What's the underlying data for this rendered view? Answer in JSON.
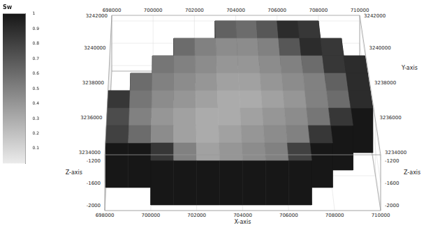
{
  "chart_data": {
    "type": "3d_block",
    "x_label": "X-axis",
    "y_label": "Y-axis",
    "z_label": "Z-axis",
    "xlim": [
      698000,
      710000
    ],
    "xticks": [
      698000,
      700000,
      702000,
      704000,
      706000,
      708000,
      710000
    ],
    "ylim": [
      3234000,
      3242000
    ],
    "yticks": [
      3234000,
      3236000,
      3238000,
      3240000,
      3242000
    ],
    "zlim": [
      -2100,
      -1100
    ],
    "zticks": [
      -2000,
      -1600,
      -1200
    ],
    "grid": true,
    "cells": {
      "x": [
        698000,
        699000,
        700000,
        701000,
        702000,
        703000,
        704000,
        705000,
        706000,
        707000,
        708000,
        709000,
        710000
      ],
      "y": [
        3234000,
        3235000,
        3236000,
        3237000,
        3238000,
        3239000,
        3240000,
        3241000,
        3242000
      ],
      "top_z": -1200,
      "base_z": -2000,
      "side_sw": 1,
      "values": [
        [
          null,
          null,
          0.85,
          0.5,
          0.35,
          0.4,
          0.45,
          0.5,
          0.8,
          null,
          null,
          null
        ],
        [
          0.8,
          0.6,
          0.45,
          0.35,
          0.3,
          0.35,
          0.4,
          0.45,
          0.5,
          0.85,
          null,
          null
        ],
        [
          0.75,
          0.5,
          0.4,
          0.35,
          0.3,
          0.3,
          0.35,
          0.4,
          0.45,
          0.55,
          0.85,
          null
        ],
        [
          0.85,
          0.55,
          0.45,
          0.4,
          0.35,
          0.3,
          0.3,
          0.35,
          0.4,
          0.5,
          0.6,
          0.9
        ],
        [
          null,
          0.6,
          0.5,
          0.45,
          0.4,
          0.35,
          0.35,
          0.4,
          0.45,
          0.5,
          0.65,
          0.9
        ],
        [
          null,
          null,
          0.55,
          0.5,
          0.45,
          0.4,
          0.4,
          0.45,
          0.5,
          0.6,
          0.85,
          0.9
        ],
        [
          null,
          null,
          null,
          0.6,
          0.5,
          0.45,
          0.45,
          0.5,
          0.7,
          0.9,
          0.85,
          null
        ],
        [
          null,
          null,
          null,
          null,
          null,
          0.65,
          0.6,
          0.7,
          0.9,
          0.85,
          null,
          null
        ]
      ]
    },
    "colorbar": {
      "label": "Sw",
      "range": [
        0,
        1
      ],
      "ticks": [
        0.1,
        0.2,
        0.3,
        0.4,
        0.5,
        0.6,
        0.7,
        0.8,
        0.9,
        1
      ]
    }
  }
}
